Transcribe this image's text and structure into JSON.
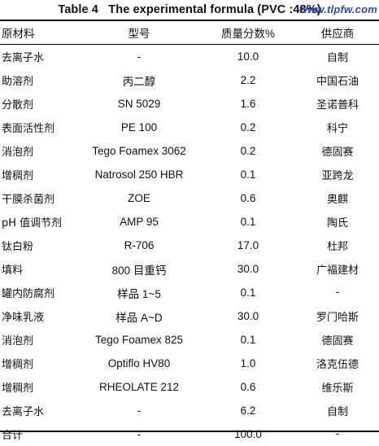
{
  "caption": "Table 4   The experimental formula (PVC :48%)",
  "watermark": "www.tlpfw.com",
  "columns": [
    "原材料",
    "型号",
    "质量分数%",
    "供应商"
  ],
  "rows": [
    [
      "去离子水",
      "-",
      "10.0",
      "自制"
    ],
    [
      "助溶剂",
      "丙二醇",
      "2.2",
      "中国石油"
    ],
    [
      "分散剂",
      "SN 5029",
      "1.6",
      "圣诺普科"
    ],
    [
      "表面活性剂",
      "PE 100",
      "0.2",
      "科宁"
    ],
    [
      "消泡剂",
      "Tego Foamex 3062",
      "0.2",
      "德固赛"
    ],
    [
      "增稠剂",
      "Natrosol 250 HBR",
      "0.1",
      "亚跨龙"
    ],
    [
      "干膜杀菌剂",
      "ZOE",
      "0.6",
      "奥麒"
    ],
    [
      "pH 值调节剂",
      "AMP 95",
      "0.1",
      "陶氏"
    ],
    [
      "钛白粉",
      "R-706",
      "17.0",
      "杜邦"
    ],
    [
      "填料",
      "800 目重钙",
      "30.0",
      "广福建材"
    ],
    [
      "罐内防腐剂",
      "样品 1~5",
      "0.1",
      "-"
    ],
    [
      "净味乳液",
      "样品 A~D",
      "30.0",
      "罗门哈斯"
    ],
    [
      "消泡剂",
      "Tego Foamex 825",
      "0.1",
      "德固赛"
    ],
    [
      "增稠剂",
      "Optiflo HV80",
      "1.0",
      "洛克伍德"
    ],
    [
      "增稠剂",
      "RHEOLATE 212",
      "0.6",
      "维乐斯"
    ],
    [
      "去离子水",
      "-",
      "6.2",
      "自制"
    ],
    [
      "合计",
      "-",
      "100.0",
      "-"
    ]
  ]
}
